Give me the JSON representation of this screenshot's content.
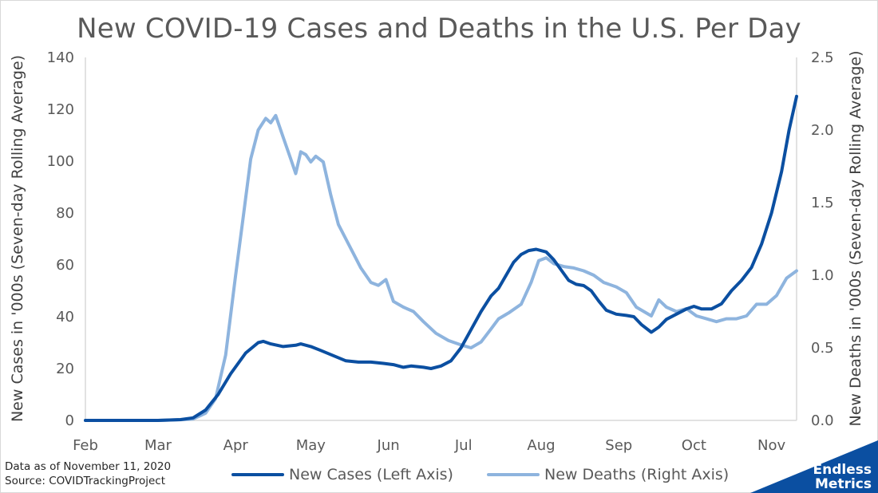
{
  "chart_data": {
    "type": "line",
    "title": "New COVID-19 Cases and Deaths in the U.S. Per Day",
    "ylabel_left": "New Cases in '000s (Seven-day Rolling Average)",
    "ylabel_right": "New Deaths in '000s (Seven-day Rolling Average)",
    "x_tick_labels": [
      "Feb",
      "Mar",
      "Apr",
      "May",
      "Jun",
      "Jul",
      "Aug",
      "Sep",
      "Oct",
      "Nov"
    ],
    "x_tick_dates": [
      "2020-02-01",
      "2020-03-01",
      "2020-04-01",
      "2020-05-01",
      "2020-06-01",
      "2020-07-01",
      "2020-08-01",
      "2020-09-01",
      "2020-10-01",
      "2020-11-01"
    ],
    "xlim": [
      "2020-02-01",
      "2020-11-11"
    ],
    "ylim_left": [
      0,
      140
    ],
    "yticks_left": [
      "0",
      "20",
      "40",
      "60",
      "80",
      "100",
      "120",
      "140"
    ],
    "ylim_right": [
      0,
      2.5
    ],
    "yticks_right": [
      "0.0",
      "0.5",
      "1.0",
      "1.5",
      "2.0",
      "2.5"
    ],
    "grid": false,
    "legend_position": "bottom",
    "series": [
      {
        "name": "New Cases (Left Axis)",
        "axis": "left",
        "color": "#0b4fa1",
        "points": [
          [
            "2020-02-01",
            0
          ],
          [
            "2020-03-01",
            0
          ],
          [
            "2020-03-10",
            0.3
          ],
          [
            "2020-03-15",
            1
          ],
          [
            "2020-03-20",
            4
          ],
          [
            "2020-03-25",
            10
          ],
          [
            "2020-03-30",
            18
          ],
          [
            "2020-04-05",
            26
          ],
          [
            "2020-04-10",
            30
          ],
          [
            "2020-04-12",
            30.5
          ],
          [
            "2020-04-15",
            29.5
          ],
          [
            "2020-04-20",
            28.5
          ],
          [
            "2020-04-25",
            29
          ],
          [
            "2020-04-27",
            29.5
          ],
          [
            "2020-05-01",
            28.5
          ],
          [
            "2020-05-05",
            27
          ],
          [
            "2020-05-10",
            25
          ],
          [
            "2020-05-15",
            23
          ],
          [
            "2020-05-20",
            22.5
          ],
          [
            "2020-05-25",
            22.5
          ],
          [
            "2020-05-30",
            22
          ],
          [
            "2020-06-03",
            21.5
          ],
          [
            "2020-06-07",
            20.5
          ],
          [
            "2020-06-10",
            21
          ],
          [
            "2020-06-15",
            20.5
          ],
          [
            "2020-06-18",
            20
          ],
          [
            "2020-06-22",
            21
          ],
          [
            "2020-06-26",
            23
          ],
          [
            "2020-06-30",
            28
          ],
          [
            "2020-07-04",
            35
          ],
          [
            "2020-07-08",
            42
          ],
          [
            "2020-07-12",
            48
          ],
          [
            "2020-07-15",
            51
          ],
          [
            "2020-07-18",
            56
          ],
          [
            "2020-07-21",
            61
          ],
          [
            "2020-07-24",
            64
          ],
          [
            "2020-07-27",
            65.5
          ],
          [
            "2020-07-30",
            66
          ],
          [
            "2020-08-03",
            65
          ],
          [
            "2020-08-06",
            62
          ],
          [
            "2020-08-09",
            58
          ],
          [
            "2020-08-12",
            54
          ],
          [
            "2020-08-15",
            52.5
          ],
          [
            "2020-08-18",
            52
          ],
          [
            "2020-08-21",
            50
          ],
          [
            "2020-08-24",
            46
          ],
          [
            "2020-08-27",
            42.5
          ],
          [
            "2020-08-31",
            41
          ],
          [
            "2020-09-04",
            40.5
          ],
          [
            "2020-09-07",
            40
          ],
          [
            "2020-09-10",
            37
          ],
          [
            "2020-09-14",
            34
          ],
          [
            "2020-09-17",
            36
          ],
          [
            "2020-09-20",
            39
          ],
          [
            "2020-09-24",
            41
          ],
          [
            "2020-09-28",
            43
          ],
          [
            "2020-10-01",
            44
          ],
          [
            "2020-10-04",
            43
          ],
          [
            "2020-10-08",
            43
          ],
          [
            "2020-10-12",
            45
          ],
          [
            "2020-10-16",
            50
          ],
          [
            "2020-10-20",
            54
          ],
          [
            "2020-10-24",
            59
          ],
          [
            "2020-10-28",
            68
          ],
          [
            "2020-11-01",
            80
          ],
          [
            "2020-11-05",
            96
          ],
          [
            "2020-11-08",
            112
          ],
          [
            "2020-11-11",
            125
          ]
        ]
      },
      {
        "name": "New Deaths (Right Axis)",
        "axis": "right",
        "color": "#8eb4de",
        "points": [
          [
            "2020-02-01",
            0
          ],
          [
            "2020-03-01",
            0
          ],
          [
            "2020-03-10",
            0.005
          ],
          [
            "2020-03-15",
            0.01
          ],
          [
            "2020-03-20",
            0.05
          ],
          [
            "2020-03-24",
            0.15
          ],
          [
            "2020-03-28",
            0.45
          ],
          [
            "2020-04-01",
            1.0
          ],
          [
            "2020-04-04",
            1.4
          ],
          [
            "2020-04-07",
            1.8
          ],
          [
            "2020-04-10",
            2.0
          ],
          [
            "2020-04-13",
            2.08
          ],
          [
            "2020-04-15",
            2.05
          ],
          [
            "2020-04-17",
            2.1
          ],
          [
            "2020-04-20",
            1.95
          ],
          [
            "2020-04-23",
            1.8
          ],
          [
            "2020-04-25",
            1.7
          ],
          [
            "2020-04-27",
            1.85
          ],
          [
            "2020-04-29",
            1.83
          ],
          [
            "2020-05-01",
            1.78
          ],
          [
            "2020-05-03",
            1.82
          ],
          [
            "2020-05-06",
            1.78
          ],
          [
            "2020-05-09",
            1.55
          ],
          [
            "2020-05-12",
            1.35
          ],
          [
            "2020-05-15",
            1.25
          ],
          [
            "2020-05-18",
            1.15
          ],
          [
            "2020-05-21",
            1.05
          ],
          [
            "2020-05-25",
            0.95
          ],
          [
            "2020-05-28",
            0.93
          ],
          [
            "2020-05-31",
            0.97
          ],
          [
            "2020-06-03",
            0.82
          ],
          [
            "2020-06-07",
            0.78
          ],
          [
            "2020-06-11",
            0.75
          ],
          [
            "2020-06-15",
            0.68
          ],
          [
            "2020-06-20",
            0.6
          ],
          [
            "2020-06-25",
            0.55
          ],
          [
            "2020-06-30",
            0.52
          ],
          [
            "2020-07-04",
            0.5
          ],
          [
            "2020-07-08",
            0.54
          ],
          [
            "2020-07-12",
            0.63
          ],
          [
            "2020-07-15",
            0.7
          ],
          [
            "2020-07-19",
            0.74
          ],
          [
            "2020-07-24",
            0.8
          ],
          [
            "2020-07-28",
            0.95
          ],
          [
            "2020-07-31",
            1.1
          ],
          [
            "2020-08-03",
            1.12
          ],
          [
            "2020-08-06",
            1.08
          ],
          [
            "2020-08-10",
            1.06
          ],
          [
            "2020-08-14",
            1.05
          ],
          [
            "2020-08-18",
            1.03
          ],
          [
            "2020-08-22",
            1.0
          ],
          [
            "2020-08-26",
            0.95
          ],
          [
            "2020-08-31",
            0.92
          ],
          [
            "2020-09-04",
            0.88
          ],
          [
            "2020-09-08",
            0.78
          ],
          [
            "2020-09-11",
            0.75
          ],
          [
            "2020-09-14",
            0.72
          ],
          [
            "2020-09-17",
            0.83
          ],
          [
            "2020-09-20",
            0.78
          ],
          [
            "2020-09-24",
            0.75
          ],
          [
            "2020-09-28",
            0.77
          ],
          [
            "2020-10-02",
            0.72
          ],
          [
            "2020-10-06",
            0.7
          ],
          [
            "2020-10-10",
            0.68
          ],
          [
            "2020-10-14",
            0.7
          ],
          [
            "2020-10-18",
            0.7
          ],
          [
            "2020-10-22",
            0.72
          ],
          [
            "2020-10-26",
            0.8
          ],
          [
            "2020-10-30",
            0.8
          ],
          [
            "2020-11-03",
            0.86
          ],
          [
            "2020-11-07",
            0.98
          ],
          [
            "2020-11-11",
            1.03
          ]
        ]
      }
    ]
  },
  "notes": {
    "data_date": "Data as of November 11, 2020",
    "source": "Source: COVIDTrackingProject"
  },
  "logo": {
    "line1": "Endless",
    "line2": "Metrics",
    "color": "#0b4fa1"
  }
}
